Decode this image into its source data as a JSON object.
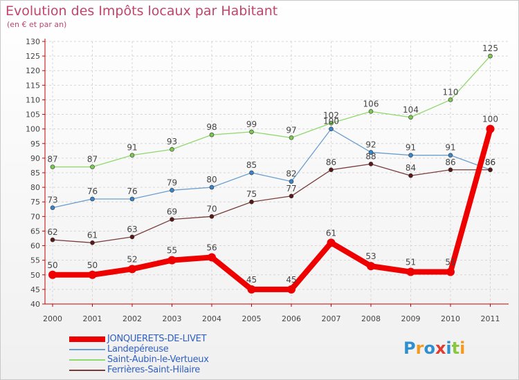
{
  "title": "Evolution des Impôts locaux par Habitant",
  "subtitle": "(en € et par an)",
  "logo": [
    "P",
    "r",
    "o",
    "x",
    "i",
    "t",
    "i"
  ],
  "logo_colors": [
    "#2f8fcf",
    "#f39a1e",
    "#2f8fcf",
    "#e03c31",
    "#2f8fcf",
    "#8bc63f",
    "#f39a1e"
  ],
  "chart_data": {
    "type": "line",
    "title": "Evolution des Impôts locaux par Habitant",
    "subtitle": "(en € et par an)",
    "xlabel": "",
    "ylabel": "",
    "ylim": [
      40,
      130
    ],
    "ytick_step": 5,
    "grid": true,
    "legend_position": "bottom-left",
    "x": [
      "2000",
      "2001",
      "2002",
      "2003",
      "2004",
      "2005",
      "2006",
      "2007",
      "2008",
      "2009",
      "2010",
      "2011"
    ],
    "series": [
      {
        "name": "Saint-Aubin-le-Vertueux",
        "color": "#8fd86b",
        "marker": "#7cc850",
        "width": 1.3,
        "values": [
          87,
          87,
          91,
          93,
          98,
          99,
          97,
          102,
          106,
          104,
          110,
          125
        ],
        "labels": [
          "87",
          "87",
          "91",
          "93",
          "98",
          "99",
          "97",
          "102",
          "106",
          "104",
          "110",
          "125"
        ]
      },
      {
        "name": "Landepéreuse",
        "color": "#6a9ecf",
        "marker": "#3a84c8",
        "width": 1.3,
        "values": [
          73,
          76,
          76,
          79,
          80,
          85,
          82,
          100,
          92,
          91,
          91,
          86
        ],
        "labels": [
          "73",
          "76",
          "76",
          "79",
          "80",
          "85",
          "82",
          "100",
          "92",
          "91",
          "91",
          "86"
        ]
      },
      {
        "name": "Ferrières-Saint-Hilaire",
        "color": "#7a3a3a",
        "marker": "#5a1818",
        "width": 1.3,
        "values": [
          62,
          61,
          63,
          69,
          70,
          75,
          77,
          86,
          88,
          84,
          86,
          86
        ],
        "labels": [
          "62",
          "61",
          "63",
          "69",
          "70",
          "75",
          "77",
          "86",
          "88",
          "84",
          "86",
          "86"
        ]
      },
      {
        "name": "JONQUERETS-DE-LIVET",
        "color": "#ee0000",
        "marker": "#ee0000",
        "width": 8,
        "values": [
          50,
          50,
          52,
          55,
          56,
          45,
          45,
          61,
          53,
          51,
          51,
          100
        ],
        "labels": [
          "50",
          "50",
          "52",
          "55",
          "56",
          "45",
          "45",
          "61",
          "53",
          "51",
          "51",
          "100"
        ]
      }
    ],
    "legend": [
      {
        "name": "JONQUERETS-DE-LIVET",
        "color": "#ee0000",
        "width": 8
      },
      {
        "name": "Landepéreuse",
        "color": "#6a9ecf",
        "width": 2
      },
      {
        "name": "Saint-Aubin-le-Vertueux",
        "color": "#8fd86b",
        "width": 2
      },
      {
        "name": "Ferrières-Saint-Hilaire",
        "color": "#7a3a3a",
        "width": 2
      }
    ]
  }
}
